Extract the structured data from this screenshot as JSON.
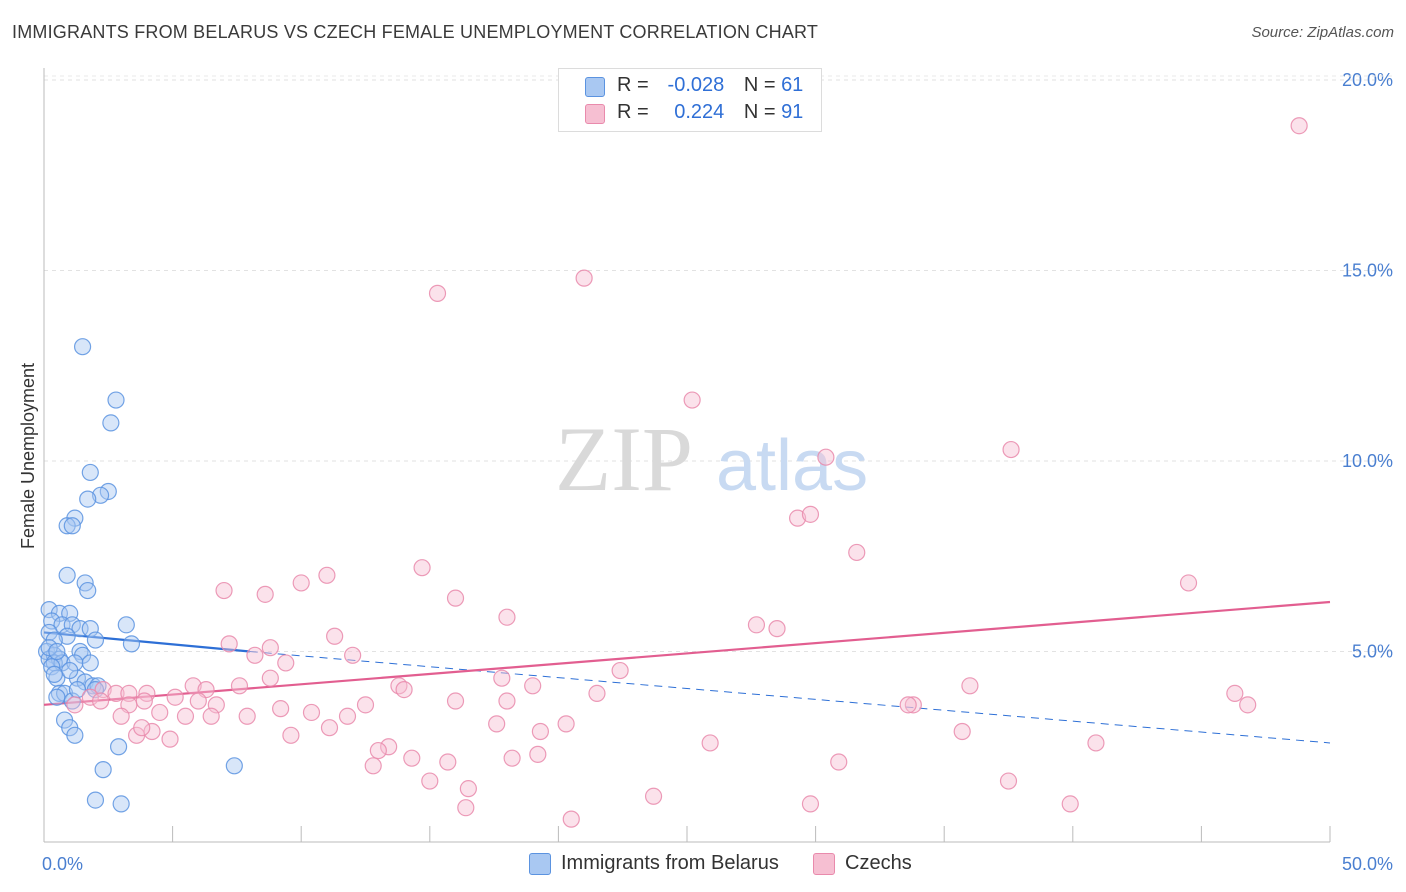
{
  "title": "IMMIGRANTS FROM BELARUS VS CZECH FEMALE UNEMPLOYMENT CORRELATION CHART",
  "source": "Source: ZipAtlas.com",
  "watermark": {
    "part1": "ZIP",
    "part2": "atlas"
  },
  "legend": {
    "rows": [
      {
        "r_label": "R =",
        "r_value": "-0.028",
        "n_label": "N =",
        "n_value": "61"
      },
      {
        "r_label": "R =",
        "r_value": " 0.224",
        "n_label": "N =",
        "n_value": "91"
      }
    ]
  },
  "bottom_legend": {
    "series1": "Immigrants from Belarus",
    "series2": "Czechs"
  },
  "chart_data": {
    "type": "scatter",
    "title": "IMMIGRANTS FROM BELARUS VS CZECH FEMALE UNEMPLOYMENT CORRELATION CHART",
    "xlabel": "",
    "ylabel": "Female Unemployment",
    "xlim": [
      0,
      50
    ],
    "ylim": [
      0,
      20
    ],
    "x_tick_labels": [
      "0.0%",
      "50.0%"
    ],
    "y_ticks": [
      5,
      10,
      15,
      20
    ],
    "y_tick_labels": [
      "5.0%",
      "10.0%",
      "15.0%",
      "20.0%"
    ],
    "grid": true,
    "colors": {
      "blue_fill": "#a9c8f2",
      "blue_stroke": "#5b93e0",
      "blue_line": "#2d6fd6",
      "pink_fill": "#f6bfd2",
      "pink_stroke": "#e98aac",
      "pink_line": "#e25e90"
    },
    "series": [
      {
        "name": "Immigrants from Belarus",
        "trend": {
          "x": [
            0,
            8
          ],
          "y": [
            5.5,
            5.0
          ],
          "dashed_to": [
            50,
            2.6
          ]
        },
        "points": [
          [
            1.5,
            13.0
          ],
          [
            2.8,
            11.6
          ],
          [
            2.6,
            11.0
          ],
          [
            1.8,
            9.7
          ],
          [
            2.5,
            9.2
          ],
          [
            2.2,
            9.1
          ],
          [
            1.7,
            9.0
          ],
          [
            1.2,
            8.5
          ],
          [
            0.9,
            8.3
          ],
          [
            1.1,
            8.3
          ],
          [
            0.9,
            7.0
          ],
          [
            1.6,
            6.8
          ],
          [
            1.7,
            6.6
          ],
          [
            0.2,
            6.1
          ],
          [
            0.6,
            6.0
          ],
          [
            1.0,
            6.0
          ],
          [
            0.3,
            5.8
          ],
          [
            0.7,
            5.7
          ],
          [
            1.1,
            5.7
          ],
          [
            1.4,
            5.6
          ],
          [
            1.8,
            5.6
          ],
          [
            3.2,
            5.7
          ],
          [
            0.2,
            5.5
          ],
          [
            0.9,
            5.4
          ],
          [
            0.4,
            5.3
          ],
          [
            2.0,
            5.3
          ],
          [
            3.4,
            5.2
          ],
          [
            0.1,
            5.0
          ],
          [
            0.4,
            4.9
          ],
          [
            1.4,
            5.0
          ],
          [
            0.2,
            4.8
          ],
          [
            0.6,
            4.8
          ],
          [
            1.5,
            4.9
          ],
          [
            0.4,
            4.7
          ],
          [
            0.7,
            4.7
          ],
          [
            1.2,
            4.7
          ],
          [
            1.8,
            4.7
          ],
          [
            0.3,
            4.6
          ],
          [
            0.5,
            4.3
          ],
          [
            1.3,
            4.3
          ],
          [
            1.6,
            4.2
          ],
          [
            1.9,
            4.1
          ],
          [
            2.1,
            4.1
          ],
          [
            0.6,
            3.9
          ],
          [
            0.8,
            3.9
          ],
          [
            0.5,
            3.8
          ],
          [
            1.1,
            3.7
          ],
          [
            0.8,
            3.2
          ],
          [
            1.0,
            3.0
          ],
          [
            1.2,
            2.8
          ],
          [
            2.9,
            2.5
          ],
          [
            2.3,
            1.9
          ],
          [
            7.4,
            2.0
          ],
          [
            2.0,
            1.1
          ],
          [
            3.0,
            1.0
          ],
          [
            0.2,
            5.1
          ],
          [
            0.5,
            5.0
          ],
          [
            1.0,
            4.5
          ],
          [
            1.3,
            4.0
          ],
          [
            0.4,
            4.4
          ],
          [
            2.0,
            4.0
          ]
        ]
      },
      {
        "name": "Czechs",
        "trend": {
          "x": [
            0,
            50
          ],
          "y": [
            3.6,
            6.3
          ]
        },
        "points": [
          [
            48.8,
            18.8
          ],
          [
            21.0,
            14.8
          ],
          [
            15.3,
            14.4
          ],
          [
            25.2,
            11.6
          ],
          [
            37.6,
            10.3
          ],
          [
            30.4,
            10.1
          ],
          [
            29.3,
            8.5
          ],
          [
            29.8,
            8.6
          ],
          [
            31.6,
            7.6
          ],
          [
            14.7,
            7.2
          ],
          [
            11.0,
            7.0
          ],
          [
            10.0,
            6.8
          ],
          [
            44.5,
            6.8
          ],
          [
            7.0,
            6.6
          ],
          [
            8.6,
            6.5
          ],
          [
            16.0,
            6.4
          ],
          [
            18.0,
            5.9
          ],
          [
            27.7,
            5.7
          ],
          [
            28.5,
            5.6
          ],
          [
            11.3,
            5.4
          ],
          [
            7.2,
            5.2
          ],
          [
            8.8,
            5.1
          ],
          [
            8.2,
            4.9
          ],
          [
            12.0,
            4.9
          ],
          [
            22.4,
            4.5
          ],
          [
            9.4,
            4.7
          ],
          [
            17.8,
            4.3
          ],
          [
            8.8,
            4.3
          ],
          [
            5.8,
            4.1
          ],
          [
            6.3,
            4.0
          ],
          [
            7.6,
            4.1
          ],
          [
            13.8,
            4.1
          ],
          [
            14.0,
            4.0
          ],
          [
            19.0,
            4.1
          ],
          [
            36.0,
            4.1
          ],
          [
            4.0,
            3.9
          ],
          [
            5.1,
            3.8
          ],
          [
            2.3,
            4.0
          ],
          [
            2.8,
            3.9
          ],
          [
            3.3,
            3.9
          ],
          [
            6.0,
            3.7
          ],
          [
            16.0,
            3.7
          ],
          [
            18.0,
            3.7
          ],
          [
            21.5,
            3.9
          ],
          [
            33.8,
            3.6
          ],
          [
            33.6,
            3.6
          ],
          [
            46.3,
            3.9
          ],
          [
            46.8,
            3.6
          ],
          [
            1.2,
            3.6
          ],
          [
            1.8,
            3.8
          ],
          [
            2.2,
            3.7
          ],
          [
            3.3,
            3.6
          ],
          [
            3.9,
            3.7
          ],
          [
            6.7,
            3.6
          ],
          [
            4.5,
            3.4
          ],
          [
            3.0,
            3.3
          ],
          [
            5.5,
            3.3
          ],
          [
            7.9,
            3.3
          ],
          [
            10.4,
            3.4
          ],
          [
            11.8,
            3.3
          ],
          [
            17.6,
            3.1
          ],
          [
            20.3,
            3.1
          ],
          [
            11.1,
            3.0
          ],
          [
            19.3,
            2.9
          ],
          [
            3.6,
            2.8
          ],
          [
            4.2,
            2.9
          ],
          [
            4.9,
            2.7
          ],
          [
            9.6,
            2.8
          ],
          [
            35.7,
            2.9
          ],
          [
            25.9,
            2.6
          ],
          [
            40.9,
            2.6
          ],
          [
            13.4,
            2.5
          ],
          [
            14.3,
            2.2
          ],
          [
            18.2,
            2.2
          ],
          [
            19.2,
            2.3
          ],
          [
            12.8,
            2.0
          ],
          [
            15.7,
            2.1
          ],
          [
            30.9,
            2.1
          ],
          [
            15.0,
            1.6
          ],
          [
            16.5,
            1.4
          ],
          [
            37.5,
            1.6
          ],
          [
            23.7,
            1.2
          ],
          [
            29.8,
            1.0
          ],
          [
            39.9,
            1.0
          ],
          [
            16.4,
            0.9
          ],
          [
            20.5,
            0.6
          ],
          [
            3.8,
            3.0
          ],
          [
            6.5,
            3.3
          ],
          [
            9.2,
            3.5
          ],
          [
            12.5,
            3.6
          ],
          [
            13.0,
            2.4
          ]
        ]
      }
    ]
  }
}
